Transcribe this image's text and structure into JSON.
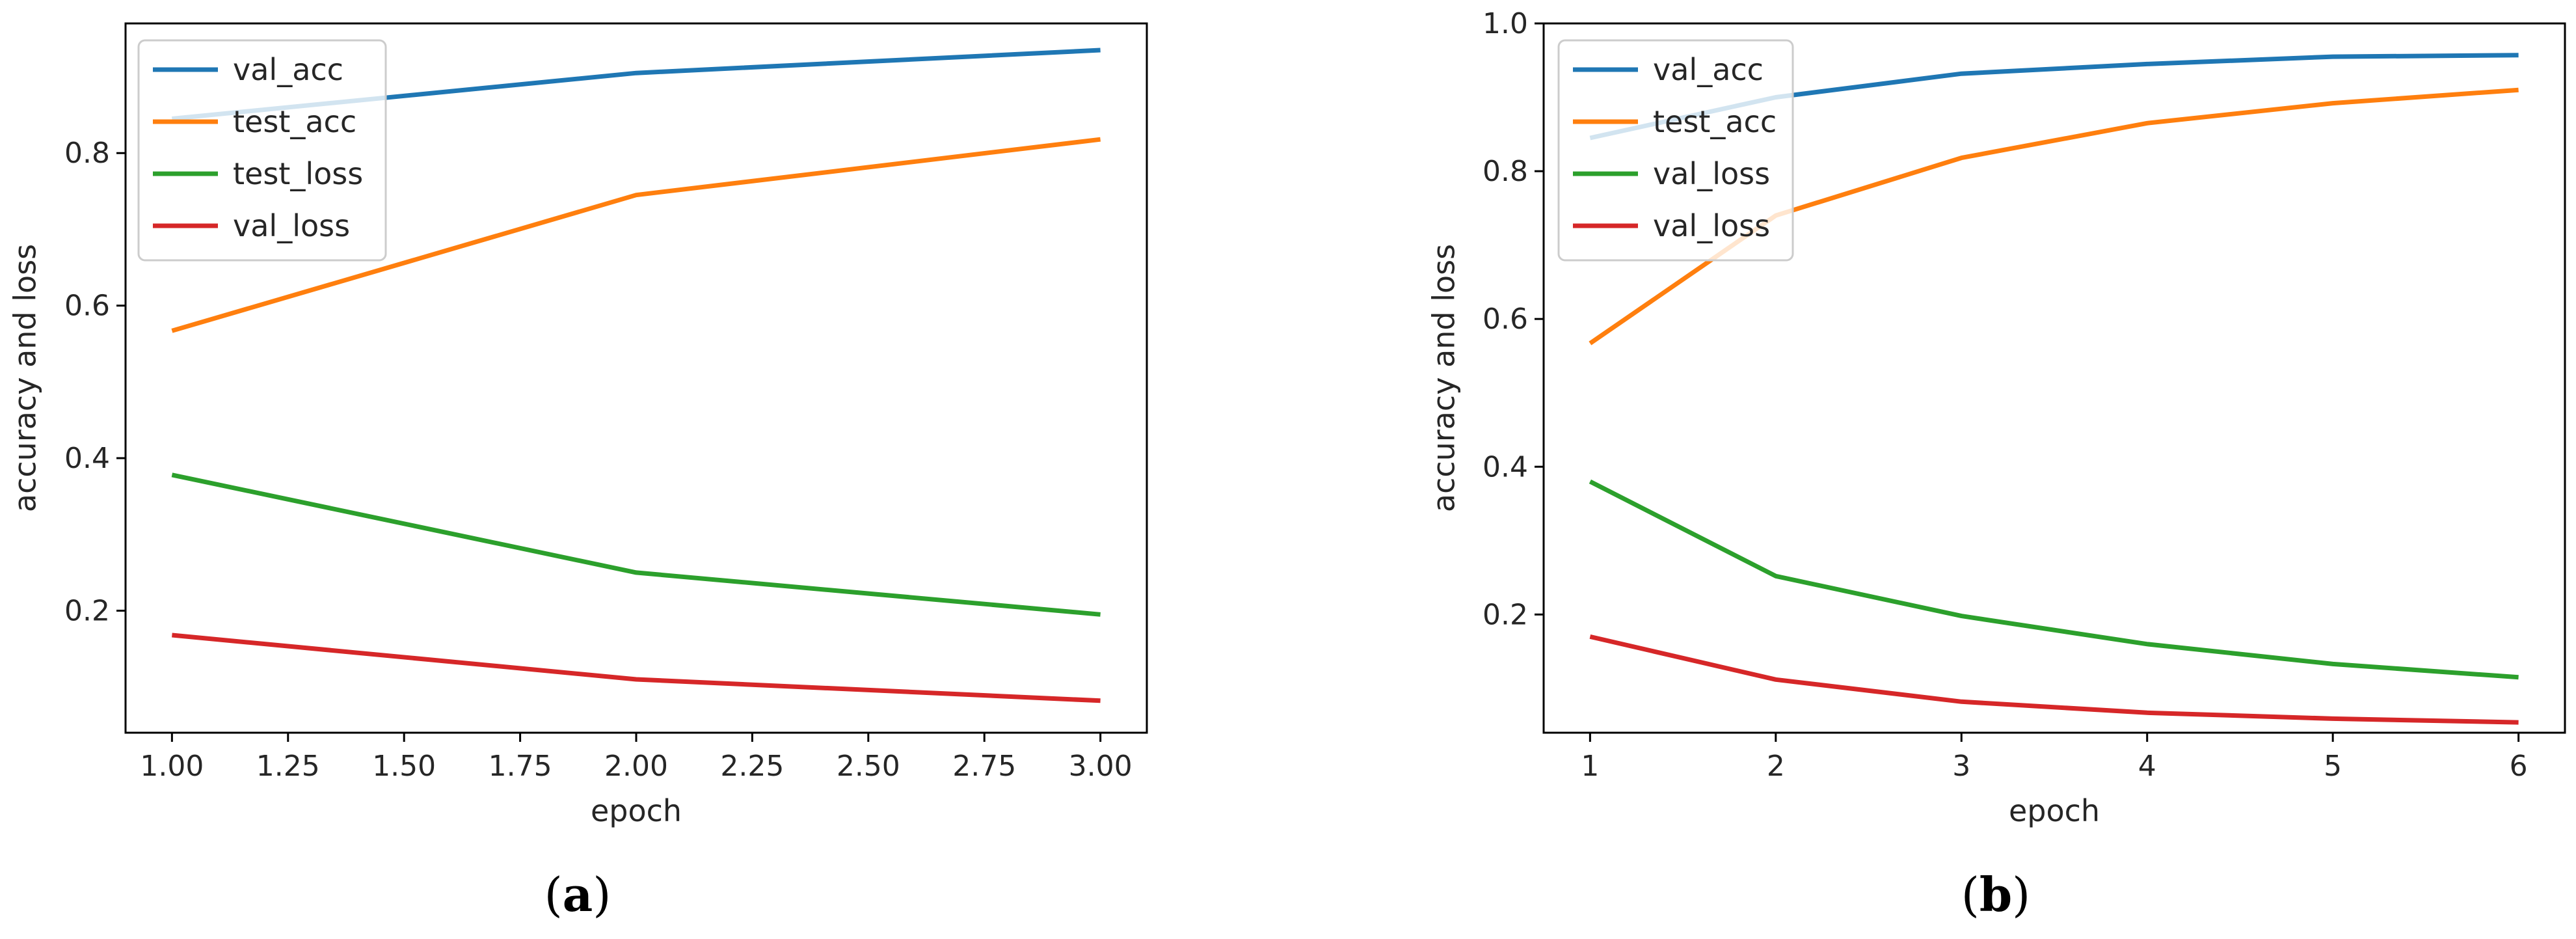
{
  "chart_data": [
    {
      "type": "line",
      "panel_letter": "a",
      "title": "",
      "xlabel": "epoch",
      "ylabel": "accuracy and loss",
      "x": [
        1.0,
        2.0,
        3.0
      ],
      "xlim": [
        0.9,
        3.1
      ],
      "ylim": [
        0.04,
        0.97
      ],
      "xticks": [
        1.0,
        1.25,
        1.5,
        1.75,
        2.0,
        2.25,
        2.5,
        2.75,
        3.0
      ],
      "xtick_labels": [
        "1.00",
        "1.25",
        "1.50",
        "1.75",
        "2.00",
        "2.25",
        "2.50",
        "2.75",
        "3.00"
      ],
      "yticks": [
        0.2,
        0.4,
        0.6,
        0.8
      ],
      "ytick_labels": [
        "0.2",
        "0.4",
        "0.6",
        "0.8"
      ],
      "legend_position": "upper-left",
      "grid": false,
      "series": [
        {
          "name": "val_acc",
          "color": "#1f77b4",
          "values": [
            0.845,
            0.905,
            0.935
          ]
        },
        {
          "name": "test_acc",
          "color": "#ff7f0e",
          "values": [
            0.567,
            0.745,
            0.818
          ]
        },
        {
          "name": "test_loss",
          "color": "#2ca02c",
          "values": [
            0.378,
            0.25,
            0.195
          ]
        },
        {
          "name": "val_loss",
          "color": "#d62728",
          "values": [
            0.168,
            0.11,
            0.082
          ]
        }
      ]
    },
    {
      "type": "line",
      "panel_letter": "b",
      "title": "",
      "xlabel": "epoch",
      "ylabel": "accuracy and loss",
      "x": [
        1,
        2,
        3,
        4,
        5,
        6
      ],
      "xlim": [
        0.75,
        6.25
      ],
      "ylim": [
        0.04,
        1.0
      ],
      "xticks": [
        1,
        2,
        3,
        4,
        5,
        6
      ],
      "xtick_labels": [
        "1",
        "2",
        "3",
        "4",
        "5",
        "6"
      ],
      "yticks": [
        0.2,
        0.4,
        0.6,
        0.8,
        1.0
      ],
      "ytick_labels": [
        "0.2",
        "0.4",
        "0.6",
        "0.8",
        "1.0"
      ],
      "legend_position": "upper-left",
      "grid": false,
      "series": [
        {
          "name": "val_acc",
          "color": "#1f77b4",
          "values": [
            0.845,
            0.9,
            0.932,
            0.945,
            0.955,
            0.957
          ]
        },
        {
          "name": "test_acc",
          "color": "#ff7f0e",
          "values": [
            0.567,
            0.74,
            0.818,
            0.865,
            0.892,
            0.91
          ]
        },
        {
          "name": "val_loss",
          "color": "#2ca02c",
          "values": [
            0.38,
            0.252,
            0.198,
            0.16,
            0.133,
            0.115
          ]
        },
        {
          "name": "val_loss",
          "color": "#d62728",
          "values": [
            0.17,
            0.112,
            0.082,
            0.067,
            0.059,
            0.054
          ]
        }
      ]
    }
  ]
}
